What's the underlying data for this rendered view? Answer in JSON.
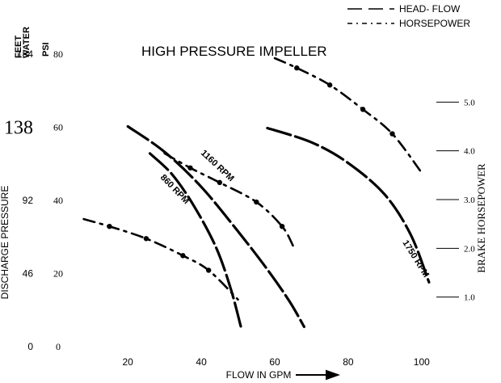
{
  "chart_data": {
    "type": "line",
    "title": "HIGH PRESSURE IMPELLER",
    "xlabel": "FLOW IN GPM",
    "ylabel_left": "DISCHARGE PRESSURE",
    "ylabel_right": "BRAKE HORSEPOWER",
    "left_units_feet": "FEET",
    "left_units_water": "WATER",
    "left_units_psi": "PSI",
    "x_ticks": [
      "20",
      "40",
      "60",
      "80",
      "100"
    ],
    "feet_ticks": [
      "0",
      "46",
      "92",
      "138",
      "184"
    ],
    "psi_ticks": [
      "0",
      "20",
      "40",
      "60",
      "80"
    ],
    "hp_ticks": [
      "1.0",
      "2.0",
      "3.0",
      "4.0",
      "5.0"
    ],
    "legend": {
      "head_flow": "HEAD- FLOW",
      "horsepower": "HORSEPOWER"
    },
    "xlim": [
      5,
      115
    ],
    "ylim_feet": [
      0,
      184
    ],
    "ylim_hp": [
      0,
      6
    ],
    "series": [
      {
        "name": "1160 RPM",
        "kind": "head",
        "x": [
          20,
          30,
          40,
          50,
          58,
          64,
          68
        ],
        "y": [
          138,
          122,
          100,
          72,
          48,
          28,
          12
        ]
      },
      {
        "name": "860 RPM",
        "kind": "head",
        "x": [
          26,
          32,
          38,
          44,
          48,
          51
        ],
        "y": [
          121,
          108,
          88,
          62,
          36,
          10
        ]
      },
      {
        "name": "1750 RPM",
        "kind": "head",
        "x": [
          58,
          70,
          80,
          90,
          97,
          102
        ],
        "y": [
          137,
          128,
          115,
          95,
          70,
          40
        ]
      },
      {
        "name": "",
        "kind": "horsepower",
        "x": [
          60,
          66,
          75,
          84,
          92,
          100
        ],
        "y": [
          5.9,
          5.7,
          5.35,
          4.85,
          4.35,
          3.55
        ]
      },
      {
        "name": "",
        "kind": "horsepower",
        "x": [
          30,
          37,
          45,
          55,
          62,
          65
        ],
        "y": [
          3.95,
          3.65,
          3.35,
          2.95,
          2.45,
          2.05
        ]
      },
      {
        "name": "",
        "kind": "horsepower",
        "x": [
          8,
          15,
          25,
          35,
          42,
          50
        ],
        "y": [
          2.6,
          2.45,
          2.2,
          1.85,
          1.55,
          0.95
        ]
      }
    ]
  }
}
